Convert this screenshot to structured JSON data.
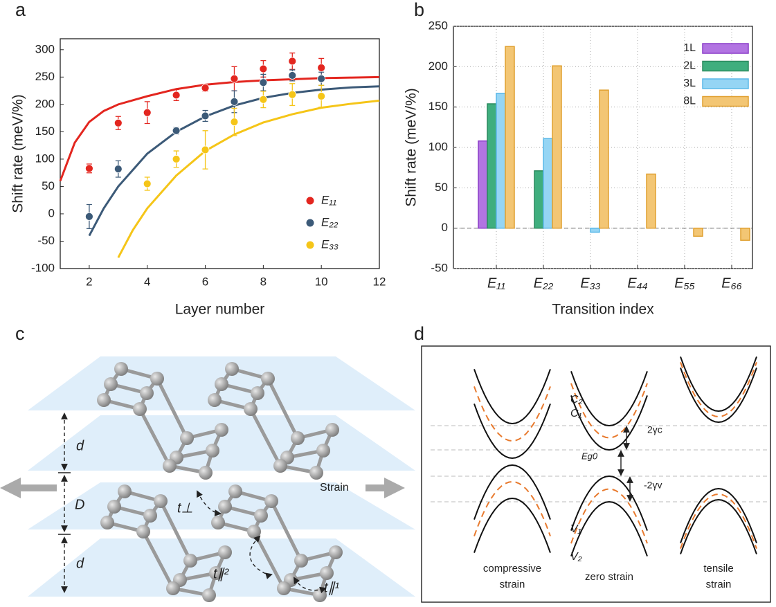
{
  "panel_labels": [
    "a",
    "b",
    "c",
    "d"
  ],
  "chart_data": [
    {
      "type": "scatter",
      "x_label": "Layer number",
      "y_label": "Shift rate (meV/%)",
      "xlim": [
        1,
        12
      ],
      "xticks": [
        2,
        4,
        6,
        8,
        10,
        12
      ],
      "ylim": [
        -100,
        320
      ],
      "yticks": [
        -100,
        -50,
        0,
        50,
        100,
        150,
        200,
        250,
        300
      ],
      "legend": "lower right",
      "x": [
        2,
        3,
        4,
        5,
        6,
        7,
        8,
        9,
        10
      ],
      "series": [
        {
          "name": "E₁₁",
          "color": "#e3261f",
          "values": [
            83,
            166,
            185,
            217,
            230,
            247,
            265,
            279,
            267
          ],
          "errors": [
            8,
            12,
            20,
            10,
            6,
            22,
            15,
            15,
            17
          ],
          "fit": {
            "x": [
              1,
              1.5,
              2,
              2.5,
              3,
              4,
              5,
              6,
              7,
              8,
              9,
              10,
              11,
              12
            ],
            "values": [
              60,
              130,
              168,
              188,
              200,
              215,
              228,
              236,
              241,
              244,
              246,
              248,
              249,
              250
            ]
          }
        },
        {
          "name": "E₂₂",
          "color": "#3c5a78",
          "values": [
            -5,
            82,
            null,
            152,
            179,
            205,
            240,
            253,
            247
          ],
          "errors": [
            22,
            15,
            null,
            6,
            10,
            20,
            15,
            10,
            12
          ],
          "fit": {
            "x": [
              2,
              2.5,
              3,
              4,
              5,
              6,
              7,
              8,
              9,
              10,
              11,
              12
            ],
            "values": [
              -40,
              10,
              50,
              110,
              150,
              178,
              198,
              212,
              221,
              227,
              231,
              233
            ]
          }
        },
        {
          "name": "E₃₃",
          "color": "#f5c518",
          "values": [
            null,
            null,
            55,
            100,
            117,
            168,
            209,
            218,
            215
          ],
          "errors": [
            null,
            null,
            12,
            15,
            35,
            25,
            15,
            20,
            20
          ],
          "fit": {
            "x": [
              3,
              3.5,
              4,
              5,
              6,
              7,
              8,
              9,
              10,
              11,
              12
            ],
            "values": [
              -80,
              -30,
              10,
              70,
              115,
              145,
              167,
              182,
              194,
              201,
              207
            ]
          }
        }
      ]
    },
    {
      "type": "bar",
      "x_label": "Transition index",
      "y_label": "Shift rate (meV/%)",
      "categories": [
        "E₁₁",
        "E₂₂",
        "E₃₃",
        "E₄₄",
        "E₅₅",
        "E₆₆"
      ],
      "ylim": [
        -50,
        250
      ],
      "yticks": [
        -50,
        0,
        50,
        100,
        150,
        200,
        250
      ],
      "grid": true,
      "legend": "upper right",
      "series": [
        {
          "name": "1L",
          "color": "#b274e2",
          "edgecolor": "#8a3cc8",
          "values": [
            108,
            null,
            null,
            null,
            null,
            null
          ]
        },
        {
          "name": "2L",
          "color": "#3fae7e",
          "edgecolor": "#2a8a5e",
          "values": [
            154,
            71,
            null,
            null,
            null,
            null
          ]
        },
        {
          "name": "3L",
          "color": "#95d5f4",
          "edgecolor": "#5ab8e8",
          "values": [
            167,
            111,
            -5,
            null,
            null,
            null
          ]
        },
        {
          "name": "8L",
          "color": "#f3c674",
          "edgecolor": "#e0a030",
          "values": [
            225,
            201,
            171,
            67,
            -10,
            -15
          ]
        }
      ]
    }
  ],
  "diagram_c": {
    "spacing": [
      "d",
      "D",
      "d"
    ],
    "hopping": [
      "t⊥",
      "t∥²",
      "t∥¹"
    ],
    "strain": "Strain"
  },
  "diagram_d": {
    "bands": [
      "C₂",
      "C₁",
      "V₁",
      "V₂"
    ],
    "gaps": [
      "2γc",
      "Eg0",
      "-2γv"
    ],
    "captions": [
      [
        "compressive",
        "strain"
      ],
      [
        "zero strain"
      ],
      [
        "tensile",
        "strain"
      ]
    ]
  }
}
